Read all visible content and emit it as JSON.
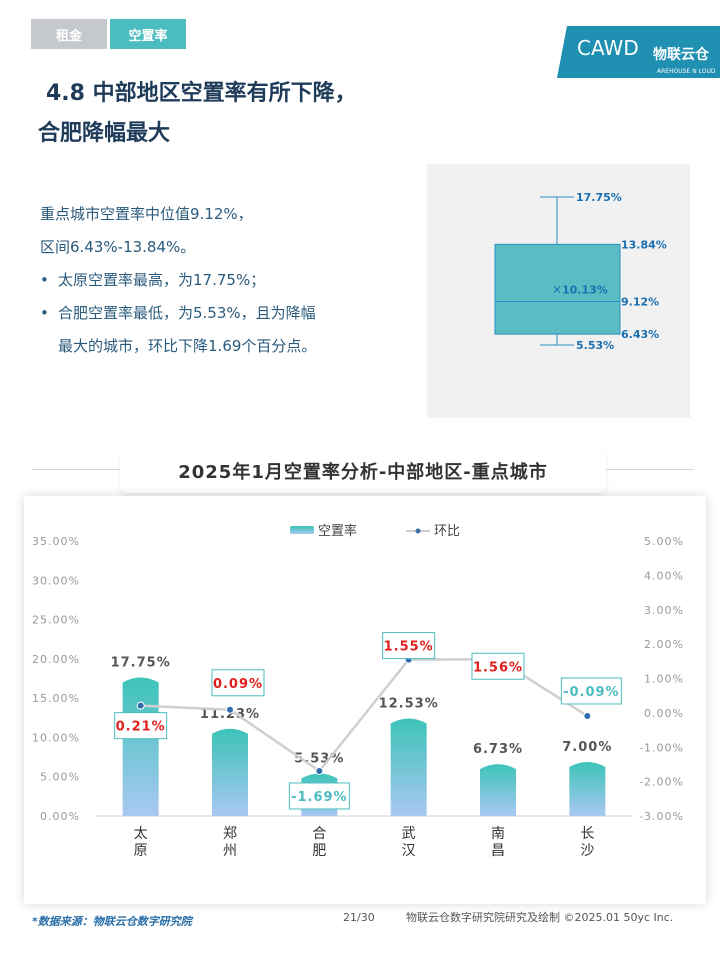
{
  "tabs": {
    "inactive": "租金",
    "active": "空置率"
  },
  "logo": {
    "text": "CAWD",
    "brand": "物联云仓",
    "subtitle": "AREHOUSE N LOUD"
  },
  "title": {
    "line1": "4.8 中部地区空置率有所下降，",
    "line2": "合肥降幅最大"
  },
  "description": {
    "line1": "重点城市空置率中位值9.12%，",
    "line2": "区间6.43%-13.84%。",
    "bullet1": "太原空置率最高，为17.75%；",
    "bullet2a": "合肥空置率最低，为5.53%，且为降幅",
    "bullet2b": "最大的城市，环比下降1.69个百分点。"
  },
  "boxplot": {
    "max": 17.75,
    "q3": 13.84,
    "median": 9.12,
    "q1": 6.43,
    "min": 5.53,
    "mean": 10.13,
    "labels": {
      "max": "17.75%",
      "q3": "13.84%",
      "median": "9.12%",
      "q1": "6.43%",
      "min": "5.53%",
      "mean": "10.13%"
    }
  },
  "chart_title": "2025年1月空置率分析-中部地区-重点城市",
  "chart_data": {
    "type": "bar",
    "title": "2025年1月空置率分析-中部地区-重点城市",
    "categories": [
      "太原",
      "郑州",
      "合肥",
      "武汉",
      "南昌",
      "长沙"
    ],
    "series": [
      {
        "name": "空置率",
        "type": "bar",
        "axis": "left",
        "values": [
          17.75,
          11.23,
          5.53,
          12.53,
          6.73,
          7.0
        ],
        "labels": [
          "17.75%",
          "11.23%",
          "5.53%",
          "12.53%",
          "6.73%",
          "7.00%"
        ]
      },
      {
        "name": "环比",
        "type": "line",
        "axis": "right",
        "values": [
          0.21,
          0.09,
          -1.69,
          1.55,
          1.56,
          -0.09
        ],
        "labels": [
          "0.21%",
          "0.09%",
          "-1.69%",
          "1.55%",
          "1.56%",
          "-0.09%"
        ]
      }
    ],
    "left_axis": {
      "min": 0,
      "max": 35,
      "step": 5,
      "ticks": [
        "0.00%",
        "5.00%",
        "10.00%",
        "15.00%",
        "20.00%",
        "25.00%",
        "30.00%",
        "35.00%"
      ]
    },
    "right_axis": {
      "min": -3,
      "max": 5,
      "step": 1,
      "ticks": [
        "-3.00%",
        "-2.00%",
        "-1.00%",
        "0.00%",
        "1.00%",
        "2.00%",
        "3.00%",
        "4.00%",
        "5.00%"
      ]
    },
    "legend_position": "top-center",
    "grid": false
  },
  "colors": {
    "bar_top": "#3cc3b8",
    "bar_bottom": "#a9c8f2",
    "line": "#cfcfcf",
    "positive": "#e0201e",
    "negative": "#4bbcc0",
    "accent": "#4bbcc0",
    "navy": "#1f3b5a"
  },
  "footer": {
    "source": "*数据来源：物联云仓数字研究院",
    "page": "21/30",
    "credit": "物联云仓数字研究院研究及绘制   ©2025.01 50yc Inc."
  }
}
